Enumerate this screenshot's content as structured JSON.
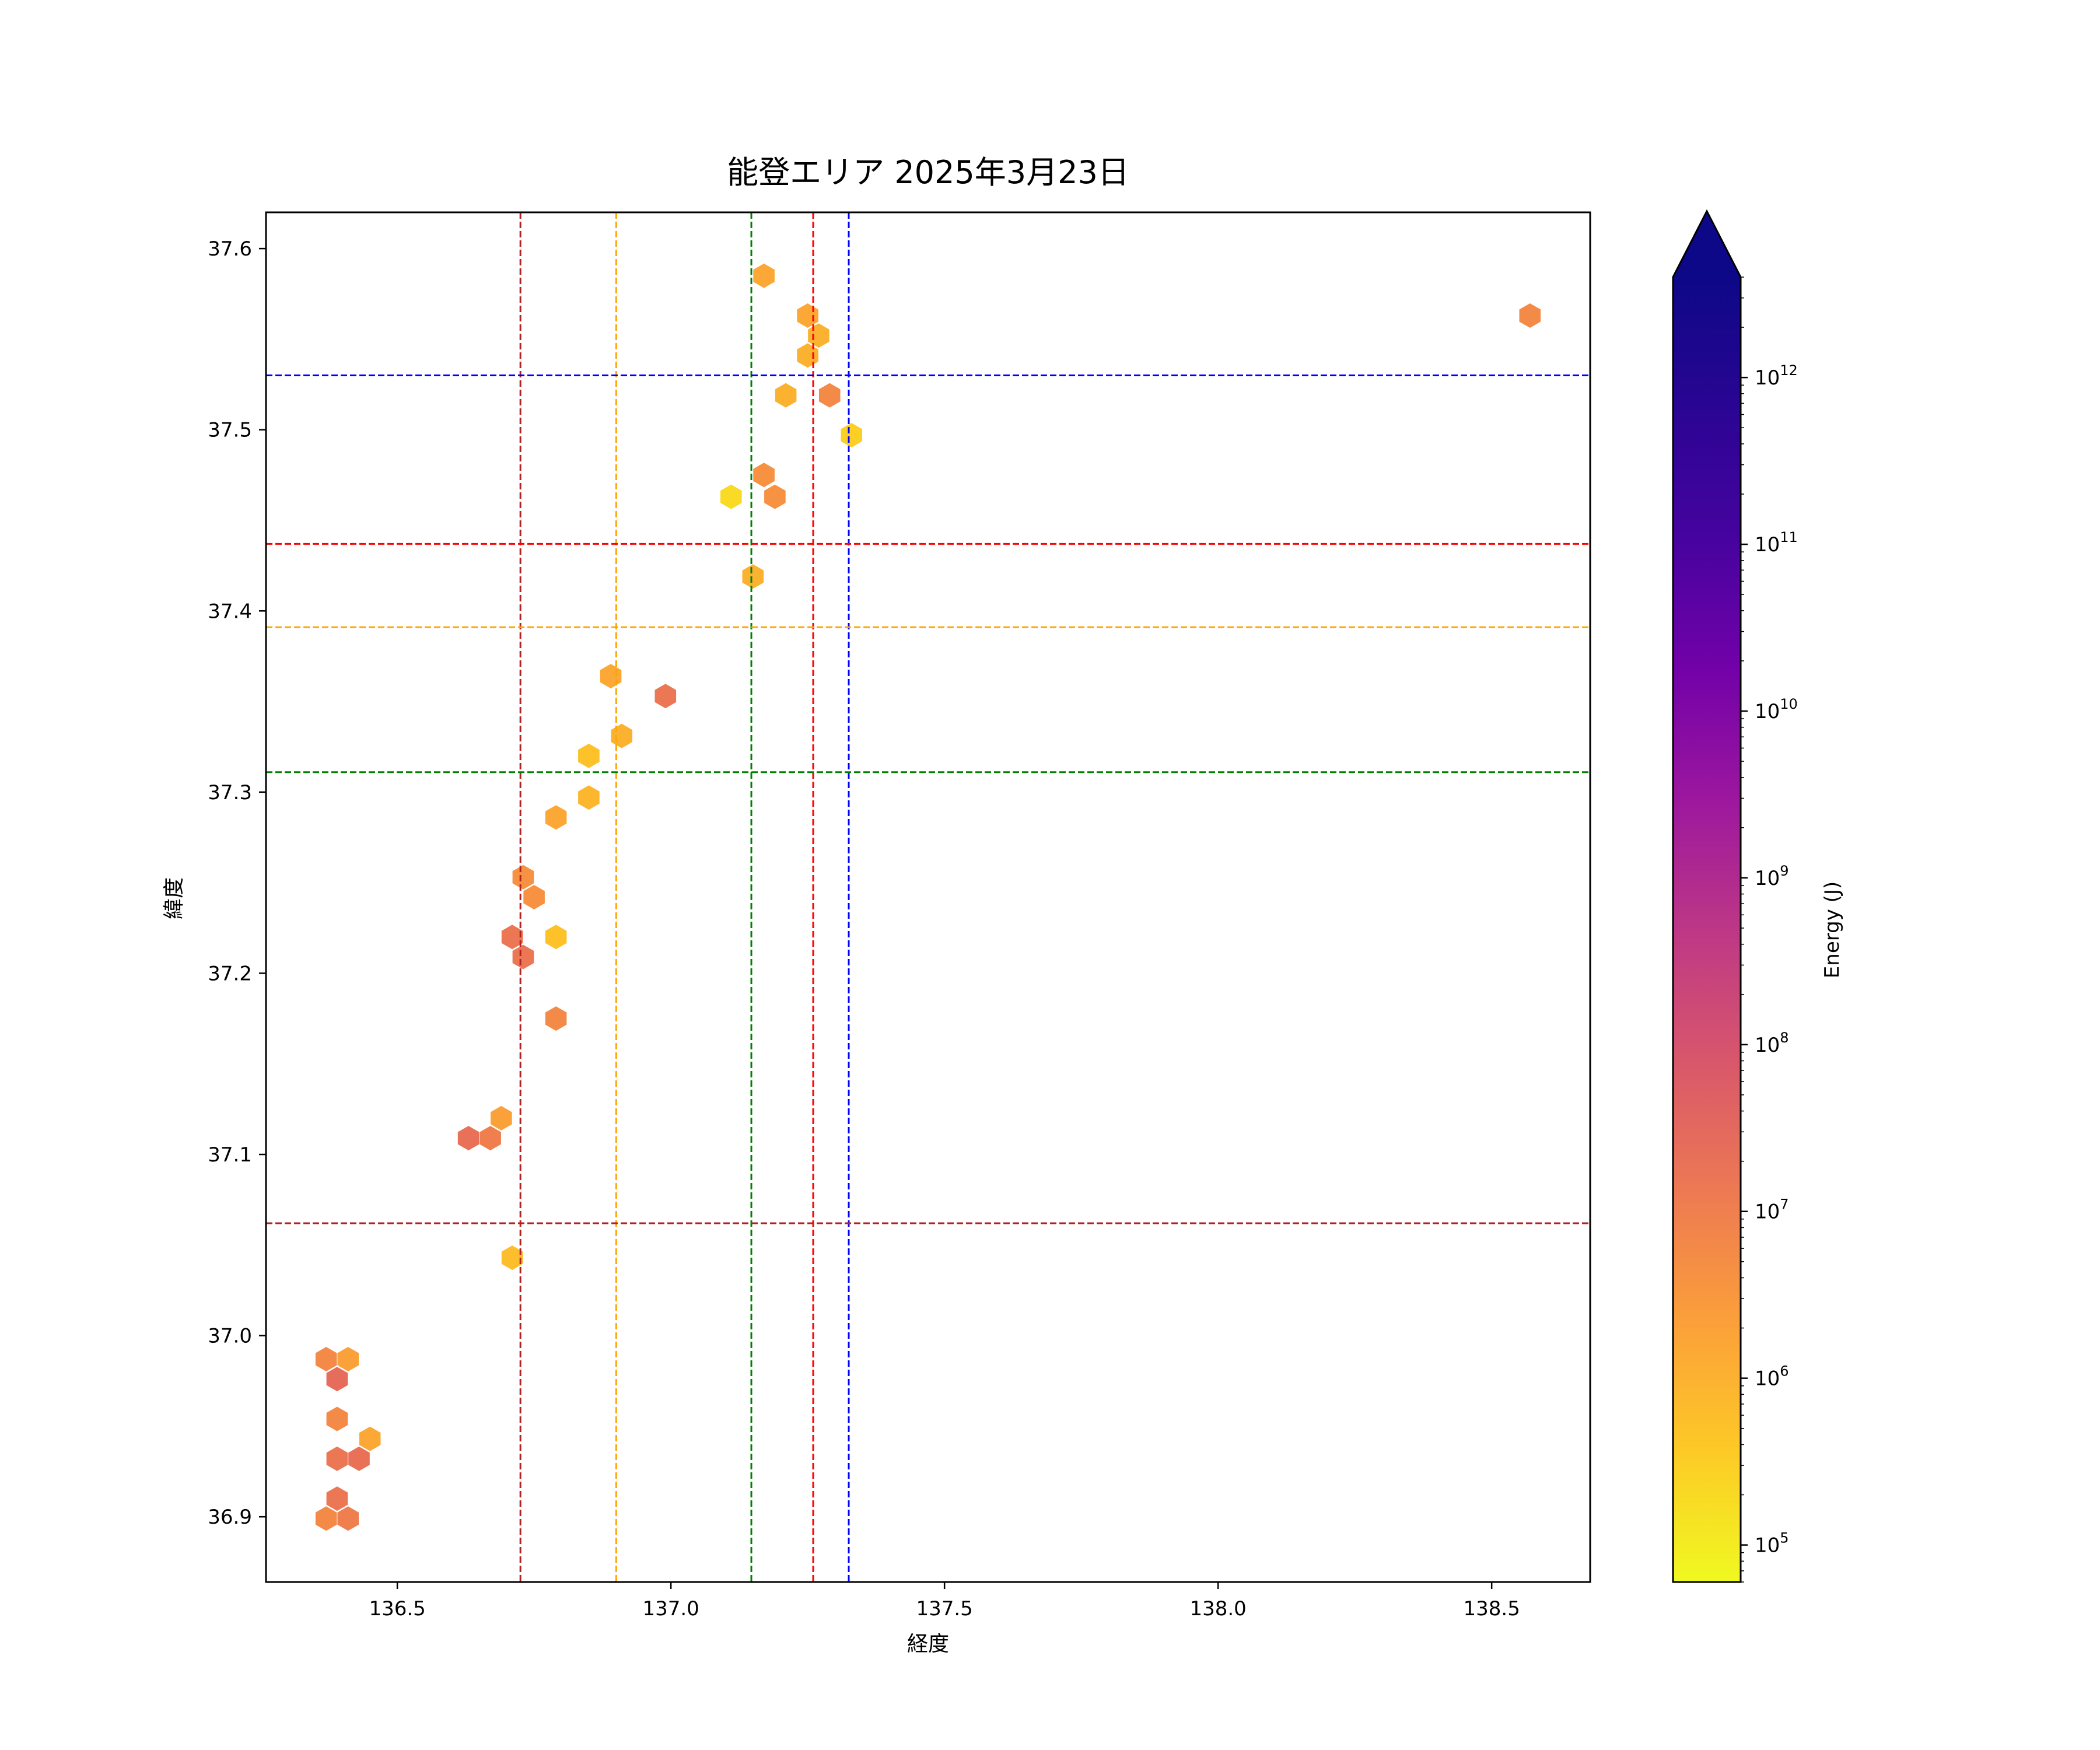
{
  "chart_data": {
    "type": "hexbin",
    "title": "能登エリア 2025年3月23日",
    "xlabel": "経度",
    "ylabel": "緯度",
    "xlim": [
      136.26,
      138.68
    ],
    "ylim": [
      36.864,
      37.62
    ],
    "xticks": [
      {
        "value": 136.5,
        "label": "136.5"
      },
      {
        "value": 137.0,
        "label": "137.0"
      },
      {
        "value": 137.5,
        "label": "137.5"
      },
      {
        "value": 138.0,
        "label": "138.0"
      },
      {
        "value": 138.5,
        "label": "138.5"
      }
    ],
    "yticks": [
      {
        "value": 36.9,
        "label": "36.9"
      },
      {
        "value": 37.0,
        "label": "37.0"
      },
      {
        "value": 37.1,
        "label": "37.1"
      },
      {
        "value": 37.2,
        "label": "37.2"
      },
      {
        "value": 37.3,
        "label": "37.3"
      },
      {
        "value": 37.4,
        "label": "37.4"
      },
      {
        "value": 37.5,
        "label": "37.5"
      },
      {
        "value": 37.6,
        "label": "37.6"
      }
    ],
    "grid": false,
    "reference_lines": {
      "vertical": [
        {
          "x": 136.725,
          "color": "#b22222"
        },
        {
          "x": 136.9,
          "color": "#ffa500"
        },
        {
          "x": 137.147,
          "color": "#008000"
        },
        {
          "x": 137.26,
          "color": "#ff0000"
        },
        {
          "x": 137.325,
          "color": "#0000ff"
        }
      ],
      "horizontal": [
        {
          "y": 37.53,
          "color": "#0000ff"
        },
        {
          "y": 37.437,
          "color": "#ff0000"
        },
        {
          "y": 37.391,
          "color": "#ffa500"
        },
        {
          "y": 37.311,
          "color": "#008000"
        },
        {
          "y": 37.062,
          "color": "#b22222"
        }
      ]
    },
    "colorbar": {
      "label": "Energy (J)",
      "scale": "log",
      "colormap": "plasma_r",
      "range": [
        60000,
        4000000000000
      ],
      "extend": "max",
      "ticks": [
        {
          "value": 100000,
          "base": "10",
          "exp": "5"
        },
        {
          "value": 1000000,
          "base": "10",
          "exp": "6"
        },
        {
          "value": 10000000,
          "base": "10",
          "exp": "7"
        },
        {
          "value": 100000000,
          "base": "10",
          "exp": "8"
        },
        {
          "value": 1000000000,
          "base": "10",
          "exp": "9"
        },
        {
          "value": 10000000000,
          "base": "10",
          "exp": "10"
        },
        {
          "value": 100000000000,
          "base": "10",
          "exp": "11"
        },
        {
          "value": 1000000000000,
          "base": "10",
          "exp": "12"
        }
      ]
    },
    "points": [
      {
        "x": 137.17,
        "y": 37.585,
        "energy": 1500000
      },
      {
        "x": 137.25,
        "y": 37.563,
        "energy": 1500000
      },
      {
        "x": 137.27,
        "y": 37.552,
        "energy": 1000000
      },
      {
        "x": 137.25,
        "y": 37.541,
        "energy": 1000000
      },
      {
        "x": 137.21,
        "y": 37.519,
        "energy": 1000000
      },
      {
        "x": 137.29,
        "y": 37.519,
        "energy": 6000000
      },
      {
        "x": 137.33,
        "y": 37.497,
        "energy": 300000
      },
      {
        "x": 137.17,
        "y": 37.475,
        "energy": 4000000
      },
      {
        "x": 137.11,
        "y": 37.463,
        "energy": 200000
      },
      {
        "x": 137.19,
        "y": 37.463,
        "energy": 4000000
      },
      {
        "x": 137.15,
        "y": 37.419,
        "energy": 1000000
      },
      {
        "x": 136.89,
        "y": 37.364,
        "energy": 1500000
      },
      {
        "x": 136.99,
        "y": 37.353,
        "energy": 15000000
      },
      {
        "x": 136.91,
        "y": 37.331,
        "energy": 1000000
      },
      {
        "x": 136.85,
        "y": 37.32,
        "energy": 500000
      },
      {
        "x": 136.85,
        "y": 37.297,
        "energy": 800000
      },
      {
        "x": 136.79,
        "y": 37.286,
        "energy": 1500000
      },
      {
        "x": 136.73,
        "y": 37.253,
        "energy": 4000000
      },
      {
        "x": 136.75,
        "y": 37.242,
        "energy": 4000000
      },
      {
        "x": 136.71,
        "y": 37.22,
        "energy": 15000000
      },
      {
        "x": 136.79,
        "y": 37.22,
        "energy": 500000
      },
      {
        "x": 136.73,
        "y": 37.209,
        "energy": 15000000
      },
      {
        "x": 136.79,
        "y": 37.175,
        "energy": 6000000
      },
      {
        "x": 136.69,
        "y": 37.12,
        "energy": 2000000
      },
      {
        "x": 136.63,
        "y": 37.109,
        "energy": 20000000
      },
      {
        "x": 136.67,
        "y": 37.109,
        "energy": 10000000
      },
      {
        "x": 136.71,
        "y": 37.043,
        "energy": 600000
      },
      {
        "x": 136.37,
        "y": 36.987,
        "energy": 6000000
      },
      {
        "x": 136.41,
        "y": 36.987,
        "energy": 2000000
      },
      {
        "x": 136.39,
        "y": 36.976,
        "energy": 25000000
      },
      {
        "x": 136.39,
        "y": 36.954,
        "energy": 6000000
      },
      {
        "x": 136.45,
        "y": 36.943,
        "energy": 1500000
      },
      {
        "x": 136.39,
        "y": 36.932,
        "energy": 15000000
      },
      {
        "x": 136.43,
        "y": 36.932,
        "energy": 20000000
      },
      {
        "x": 136.39,
        "y": 36.91,
        "energy": 15000000
      },
      {
        "x": 136.37,
        "y": 36.899,
        "energy": 6000000
      },
      {
        "x": 136.41,
        "y": 36.899,
        "energy": 10000000
      },
      {
        "x": 138.57,
        "y": 37.563,
        "energy": 6000000
      }
    ]
  }
}
